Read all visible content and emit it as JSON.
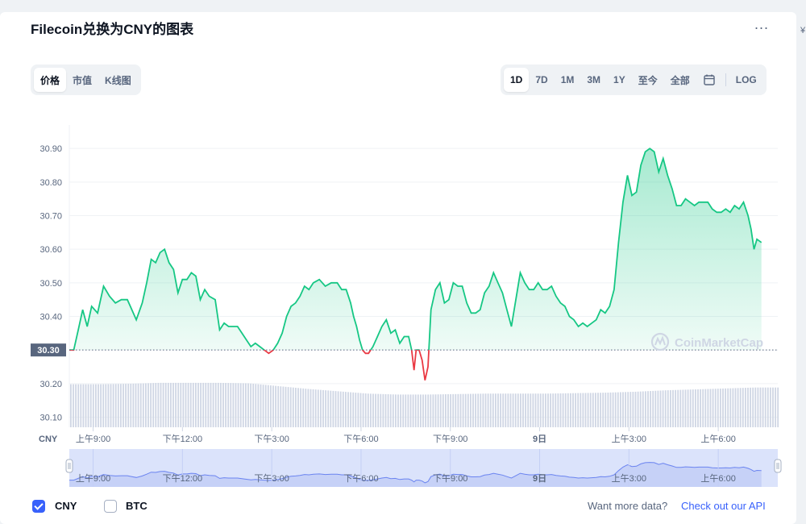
{
  "title": "Filecoin兑换为CNY的图表",
  "more_label": "...",
  "edge_mark": "¥",
  "left_tabs": [
    {
      "label": "价格",
      "active": true
    },
    {
      "label": "市值",
      "active": false
    },
    {
      "label": "K线图",
      "active": false
    }
  ],
  "range_tabs": [
    {
      "label": "1D",
      "active": true
    },
    {
      "label": "7D",
      "active": false
    },
    {
      "label": "1M",
      "active": false
    },
    {
      "label": "3M",
      "active": false
    },
    {
      "label": "1Y",
      "active": false
    },
    {
      "label": "至今",
      "active": false
    },
    {
      "label": "全部",
      "active": false
    }
  ],
  "calendar_icon": "calendar-icon",
  "log_label": "LOG",
  "chart_data": {
    "type": "area",
    "currency_label": "CNY",
    "watermark": "CoinMarketCap",
    "y_ticks": [
      "30.90",
      "30.80",
      "30.70",
      "30.60",
      "30.50",
      "30.40",
      "30.30",
      "30.20",
      "30.10"
    ],
    "y_range": [
      30.07,
      30.97
    ],
    "baseline": 30.3,
    "baseline_label": "30.30",
    "x_ticks": [
      "上午9:00",
      "下午12:00",
      "下午3:00",
      "下午6:00",
      "下午9:00",
      "9日",
      "上午3:00",
      "上午6:00"
    ],
    "x_tick_hours": [
      0.8,
      3.8,
      6.8,
      9.8,
      12.8,
      15.8,
      18.8,
      21.8
    ],
    "x_range_hours": [
      0,
      23.8
    ],
    "up_color": "#16c784",
    "down_color": "#ea3943",
    "series": [
      {
        "points": [
          [
            0,
            30.3
          ],
          [
            0.15,
            30.3
          ],
          [
            0.3,
            30.36
          ],
          [
            0.45,
            30.42
          ],
          [
            0.6,
            30.37
          ],
          [
            0.75,
            30.43
          ],
          [
            0.95,
            30.41
          ],
          [
            1.15,
            30.49
          ],
          [
            1.35,
            30.46
          ],
          [
            1.55,
            30.44
          ],
          [
            1.75,
            30.45
          ],
          [
            1.95,
            30.45
          ],
          [
            2.1,
            30.42
          ],
          [
            2.25,
            30.39
          ],
          [
            2.45,
            30.44
          ],
          [
            2.6,
            30.5
          ],
          [
            2.75,
            30.57
          ],
          [
            2.9,
            30.56
          ],
          [
            3.05,
            30.59
          ],
          [
            3.2,
            30.6
          ],
          [
            3.35,
            30.56
          ],
          [
            3.5,
            30.54
          ],
          [
            3.65,
            30.47
          ],
          [
            3.8,
            30.51
          ],
          [
            3.95,
            30.51
          ],
          [
            4.1,
            30.53
          ],
          [
            4.25,
            30.52
          ],
          [
            4.4,
            30.45
          ],
          [
            4.55,
            30.48
          ],
          [
            4.7,
            30.46
          ],
          [
            4.9,
            30.45
          ],
          [
            5.05,
            30.36
          ],
          [
            5.2,
            30.38
          ],
          [
            5.35,
            30.37
          ],
          [
            5.5,
            30.37
          ],
          [
            5.65,
            30.37
          ],
          [
            5.8,
            30.35
          ],
          [
            5.95,
            30.33
          ],
          [
            6.1,
            30.31
          ],
          [
            6.25,
            30.32
          ],
          [
            6.4,
            30.31
          ],
          [
            6.55,
            30.3
          ],
          [
            6.7,
            30.29
          ],
          [
            6.85,
            30.3
          ],
          [
            7.0,
            30.32
          ],
          [
            7.15,
            30.35
          ],
          [
            7.3,
            30.4
          ],
          [
            7.45,
            30.43
          ],
          [
            7.6,
            30.44
          ],
          [
            7.75,
            30.46
          ],
          [
            7.9,
            30.49
          ],
          [
            8.05,
            30.48
          ],
          [
            8.2,
            30.5
          ],
          [
            8.4,
            30.51
          ],
          [
            8.6,
            30.49
          ],
          [
            8.8,
            30.5
          ],
          [
            9.0,
            30.5
          ],
          [
            9.15,
            30.48
          ],
          [
            9.3,
            30.48
          ],
          [
            9.45,
            30.44
          ],
          [
            9.55,
            30.4
          ],
          [
            9.65,
            30.37
          ],
          [
            9.75,
            30.33
          ],
          [
            9.85,
            30.3
          ],
          [
            9.95,
            30.29
          ],
          [
            10.05,
            30.29
          ],
          [
            10.2,
            30.31
          ],
          [
            10.35,
            30.34
          ],
          [
            10.5,
            30.37
          ],
          [
            10.65,
            30.39
          ],
          [
            10.8,
            30.35
          ],
          [
            10.95,
            30.36
          ],
          [
            11.1,
            30.32
          ],
          [
            11.25,
            30.34
          ],
          [
            11.4,
            30.34
          ],
          [
            11.5,
            30.3
          ],
          [
            11.58,
            30.24
          ],
          [
            11.65,
            30.3
          ],
          [
            11.75,
            30.3
          ],
          [
            11.85,
            30.27
          ],
          [
            11.95,
            30.21
          ],
          [
            12.05,
            30.25
          ],
          [
            12.15,
            30.42
          ],
          [
            12.3,
            30.48
          ],
          [
            12.45,
            30.5
          ],
          [
            12.6,
            30.44
          ],
          [
            12.75,
            30.45
          ],
          [
            12.9,
            30.5
          ],
          [
            13.05,
            30.49
          ],
          [
            13.2,
            30.49
          ],
          [
            13.35,
            30.44
          ],
          [
            13.5,
            30.41
          ],
          [
            13.65,
            30.41
          ],
          [
            13.8,
            30.42
          ],
          [
            13.95,
            30.47
          ],
          [
            14.1,
            30.49
          ],
          [
            14.25,
            30.53
          ],
          [
            14.4,
            30.5
          ],
          [
            14.55,
            30.47
          ],
          [
            14.7,
            30.42
          ],
          [
            14.85,
            30.37
          ],
          [
            15.0,
            30.45
          ],
          [
            15.15,
            30.53
          ],
          [
            15.3,
            30.5
          ],
          [
            15.45,
            30.48
          ],
          [
            15.6,
            30.48
          ],
          [
            15.75,
            30.5
          ],
          [
            15.9,
            30.48
          ],
          [
            16.05,
            30.48
          ],
          [
            16.2,
            30.49
          ],
          [
            16.35,
            30.46
          ],
          [
            16.5,
            30.44
          ],
          [
            16.65,
            30.43
          ],
          [
            16.8,
            30.4
          ],
          [
            16.95,
            30.39
          ],
          [
            17.1,
            30.37
          ],
          [
            17.25,
            30.38
          ],
          [
            17.4,
            30.37
          ],
          [
            17.55,
            30.38
          ],
          [
            17.7,
            30.39
          ],
          [
            17.85,
            30.42
          ],
          [
            18.0,
            30.41
          ],
          [
            18.15,
            30.43
          ],
          [
            18.3,
            30.48
          ],
          [
            18.45,
            30.62
          ],
          [
            18.6,
            30.74
          ],
          [
            18.75,
            30.82
          ],
          [
            18.9,
            30.76
          ],
          [
            19.05,
            30.77
          ],
          [
            19.2,
            30.85
          ],
          [
            19.35,
            30.89
          ],
          [
            19.5,
            30.9
          ],
          [
            19.65,
            30.89
          ],
          [
            19.8,
            30.83
          ],
          [
            19.95,
            30.87
          ],
          [
            20.1,
            30.82
          ],
          [
            20.25,
            30.78
          ],
          [
            20.4,
            30.73
          ],
          [
            20.55,
            30.73
          ],
          [
            20.7,
            30.75
          ],
          [
            20.85,
            30.74
          ],
          [
            21.0,
            30.73
          ],
          [
            21.15,
            30.74
          ],
          [
            21.3,
            30.74
          ],
          [
            21.45,
            30.74
          ],
          [
            21.6,
            30.72
          ],
          [
            21.75,
            30.71
          ],
          [
            21.9,
            30.71
          ],
          [
            22.05,
            30.72
          ],
          [
            22.2,
            30.71
          ],
          [
            22.35,
            30.73
          ],
          [
            22.5,
            30.72
          ],
          [
            22.65,
            30.74
          ],
          [
            22.8,
            30.7
          ],
          [
            22.9,
            30.66
          ],
          [
            23.0,
            30.6
          ],
          [
            23.1,
            30.63
          ],
          [
            23.25,
            30.62
          ]
        ]
      }
    ],
    "volume_bars": [
      [
        0,
        0.92
      ],
      [
        1,
        0.92
      ],
      [
        2,
        0.93
      ],
      [
        3,
        0.95
      ],
      [
        4,
        0.95
      ],
      [
        5,
        0.95
      ],
      [
        6,
        0.94
      ],
      [
        7,
        0.88
      ],
      [
        8,
        0.82
      ],
      [
        9,
        0.77
      ],
      [
        10,
        0.72
      ],
      [
        11,
        0.7
      ],
      [
        12,
        0.7
      ],
      [
        13,
        0.71
      ],
      [
        14,
        0.72
      ],
      [
        15,
        0.72
      ],
      [
        16,
        0.72
      ],
      [
        17,
        0.73
      ],
      [
        18,
        0.74
      ],
      [
        19,
        0.76
      ],
      [
        20,
        0.79
      ],
      [
        21,
        0.81
      ],
      [
        22,
        0.83
      ],
      [
        23,
        0.85
      ],
      [
        23.6,
        0.85
      ]
    ],
    "navigator": {
      "x_ticks": [
        "上午9:00",
        "下午12:00",
        "下午3:00",
        "下午6:00",
        "下午9:00",
        "9日",
        "上午3:00",
        "上午6:00"
      ]
    }
  },
  "footer": {
    "cny_label": "CNY",
    "btc_label": "BTC",
    "api_text": "Want more data?",
    "api_link": "Check out our API"
  }
}
